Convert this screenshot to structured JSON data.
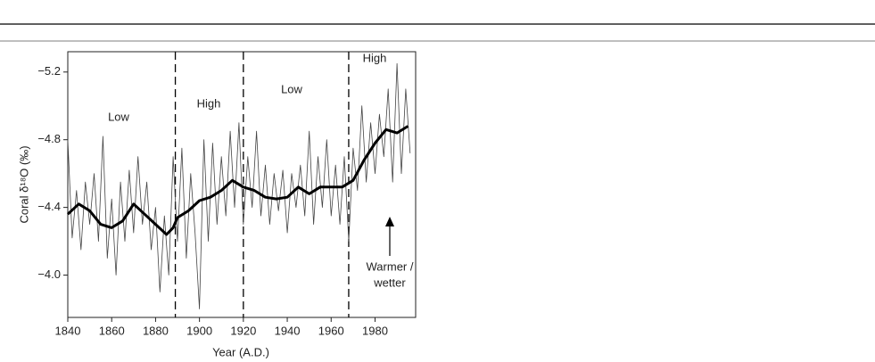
{
  "chart_data": {
    "type": "line",
    "xlabel": "Year (A.D.)",
    "ylabel": "Coral δ¹⁸O (‰)",
    "xlim": [
      1840,
      1998.5
    ],
    "xticks": [
      1840,
      1860,
      1880,
      1900,
      1920,
      1940,
      1960,
      1980
    ],
    "ylim": [
      -3.75,
      -5.32
    ],
    "yticks": [
      {
        "value": -5.2,
        "label": "−5.2"
      },
      {
        "value": -4.8,
        "label": "−4.8"
      },
      {
        "value": -4.4,
        "label": "−4.4"
      },
      {
        "value": -4.0,
        "label": "−4.0"
      }
    ],
    "dividers": [
      1889,
      1920,
      1968
    ],
    "annotations": [
      "Low",
      "High",
      "Low",
      "High",
      "Warmer /",
      "wetter"
    ],
    "series": [
      {
        "color": "#444444",
        "x": [
          1840,
          1842,
          1844,
          1846,
          1848,
          1850,
          1852,
          1854,
          1856,
          1858,
          1860,
          1862,
          1864,
          1866,
          1868,
          1870,
          1872,
          1874,
          1876,
          1878,
          1880,
          1882,
          1884,
          1886,
          1888,
          1890,
          1892,
          1894,
          1896,
          1898,
          1900,
          1902,
          1904,
          1906,
          1908,
          1910,
          1912,
          1914,
          1916,
          1918,
          1920,
          1922,
          1924,
          1926,
          1928,
          1930,
          1932,
          1934,
          1936,
          1938,
          1940,
          1942,
          1944,
          1946,
          1948,
          1950,
          1952,
          1954,
          1956,
          1958,
          1960,
          1962,
          1964,
          1966,
          1968,
          1970,
          1972,
          1974,
          1976,
          1978,
          1980,
          1982,
          1984,
          1986,
          1988,
          1990,
          1992,
          1994,
          1996
        ],
        "values": [
          -4.8,
          -4.22,
          -4.5,
          -4.15,
          -4.55,
          -4.3,
          -4.6,
          -4.2,
          -4.82,
          -4.1,
          -4.45,
          -4.0,
          -4.55,
          -4.2,
          -4.62,
          -4.25,
          -4.7,
          -4.3,
          -4.55,
          -4.15,
          -4.4,
          -3.9,
          -4.35,
          -4.0,
          -4.7,
          -4.2,
          -4.75,
          -4.1,
          -4.6,
          -4.25,
          -3.8,
          -4.8,
          -4.2,
          -4.78,
          -4.3,
          -4.7,
          -4.35,
          -4.85,
          -4.4,
          -4.9,
          -4.3,
          -4.7,
          -4.4,
          -4.85,
          -4.35,
          -4.65,
          -4.3,
          -4.6,
          -4.38,
          -4.62,
          -4.25,
          -4.6,
          -4.4,
          -4.65,
          -4.35,
          -4.85,
          -4.3,
          -4.7,
          -4.4,
          -4.8,
          -4.35,
          -4.65,
          -4.3,
          -4.7,
          -4.2,
          -4.75,
          -4.5,
          -5.0,
          -4.55,
          -4.9,
          -4.6,
          -4.95,
          -4.7,
          -5.1,
          -4.55,
          -5.25,
          -4.6,
          -5.1,
          -4.72
        ]
      },
      {
        "color": "#000000",
        "x": [
          1840,
          1845,
          1850,
          1855,
          1860,
          1865,
          1870,
          1875,
          1880,
          1885,
          1888,
          1890,
          1895,
          1900,
          1905,
          1910,
          1915,
          1920,
          1925,
          1930,
          1935,
          1940,
          1945,
          1950,
          1955,
          1960,
          1965,
          1970,
          1975,
          1980,
          1985,
          1990,
          1995
        ],
        "values": [
          -4.36,
          -4.42,
          -4.38,
          -4.3,
          -4.28,
          -4.32,
          -4.42,
          -4.36,
          -4.3,
          -4.24,
          -4.28,
          -4.34,
          -4.38,
          -4.44,
          -4.46,
          -4.5,
          -4.56,
          -4.52,
          -4.5,
          -4.46,
          -4.45,
          -4.46,
          -4.52,
          -4.48,
          -4.52,
          -4.52,
          -4.52,
          -4.56,
          -4.68,
          -4.78,
          -4.86,
          -4.84,
          -4.88
        ]
      }
    ]
  }
}
